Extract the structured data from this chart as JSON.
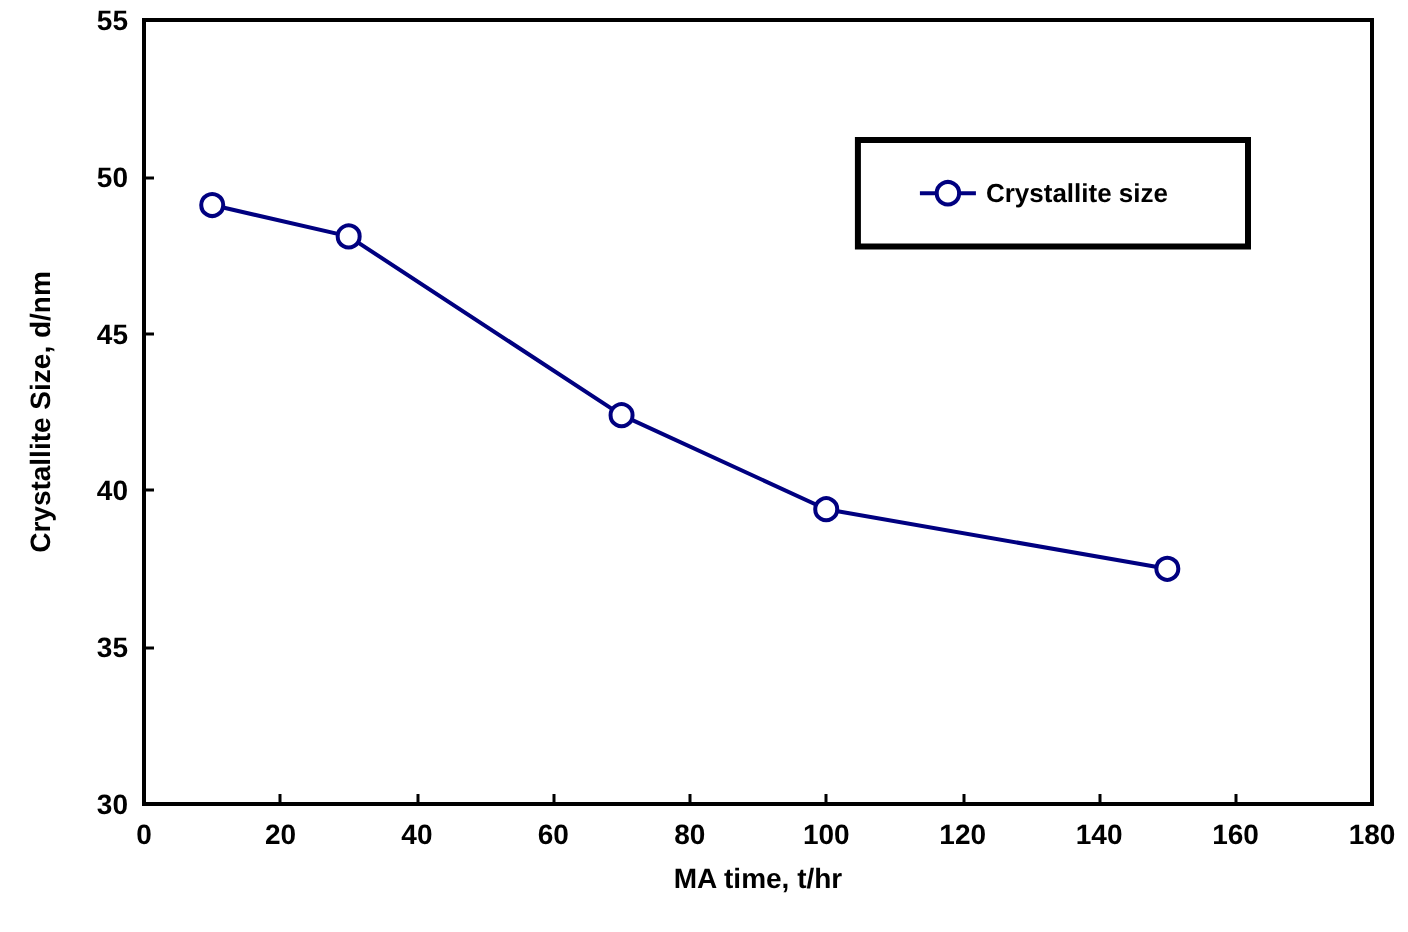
{
  "chart_data": {
    "type": "line",
    "xlabel": "MA time, t/hr",
    "ylabel": "Crystallite Size, d/nm",
    "x": [
      10,
      30,
      70,
      100,
      150
    ],
    "series": [
      {
        "name": "Crystallite size",
        "color": "#000080",
        "values": [
          49.1,
          48.1,
          42.4,
          39.4,
          37.5
        ]
      }
    ],
    "xlim": [
      0,
      180
    ],
    "xticks": [
      0,
      20,
      40,
      60,
      80,
      100,
      120,
      140,
      160,
      180
    ],
    "ylim": [
      30,
      55
    ],
    "yticks": [
      30,
      35,
      40,
      45,
      50,
      55
    ],
    "grid": false,
    "legend": "top right",
    "marker": "circle",
    "line_style": "solid"
  }
}
